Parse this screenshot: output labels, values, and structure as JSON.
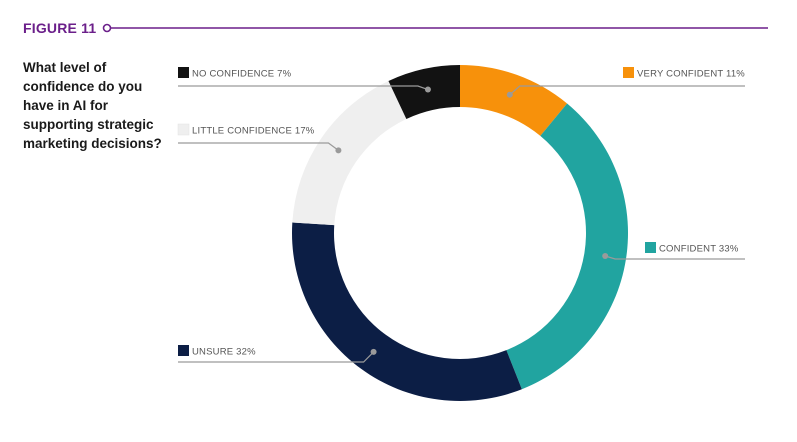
{
  "figure_label": "FIGURE 11",
  "question": "What level of confidence do you have in AI for supporting strategic marketing decisions?",
  "chart_data": {
    "type": "pie",
    "title": "What level of confidence do you have in AI for supporting strategic marketing decisions?",
    "donut": true,
    "slices": [
      {
        "label": "VERY CONFIDENT 11%",
        "name": "VERY CONFIDENT",
        "value": 11,
        "color": "#f7910b"
      },
      {
        "label": "CONFIDENT 33%",
        "name": "CONFIDENT",
        "value": 33,
        "color": "#21a4a0"
      },
      {
        "label": "UNSURE 32%",
        "name": "UNSURE",
        "value": 32,
        "color": "#0c1e45"
      },
      {
        "label": "LITTLE CONFIDENCE 17%",
        "name": "LITTLE CONFIDENCE",
        "value": 17,
        "color": "#efefef"
      },
      {
        "label": "NO CONFIDENCE 7%",
        "name": "NO CONFIDENCE",
        "value": 7,
        "color": "#121212"
      }
    ]
  },
  "colors": {
    "accent": "#6b1f8a",
    "leader": "#9a9a9a"
  }
}
